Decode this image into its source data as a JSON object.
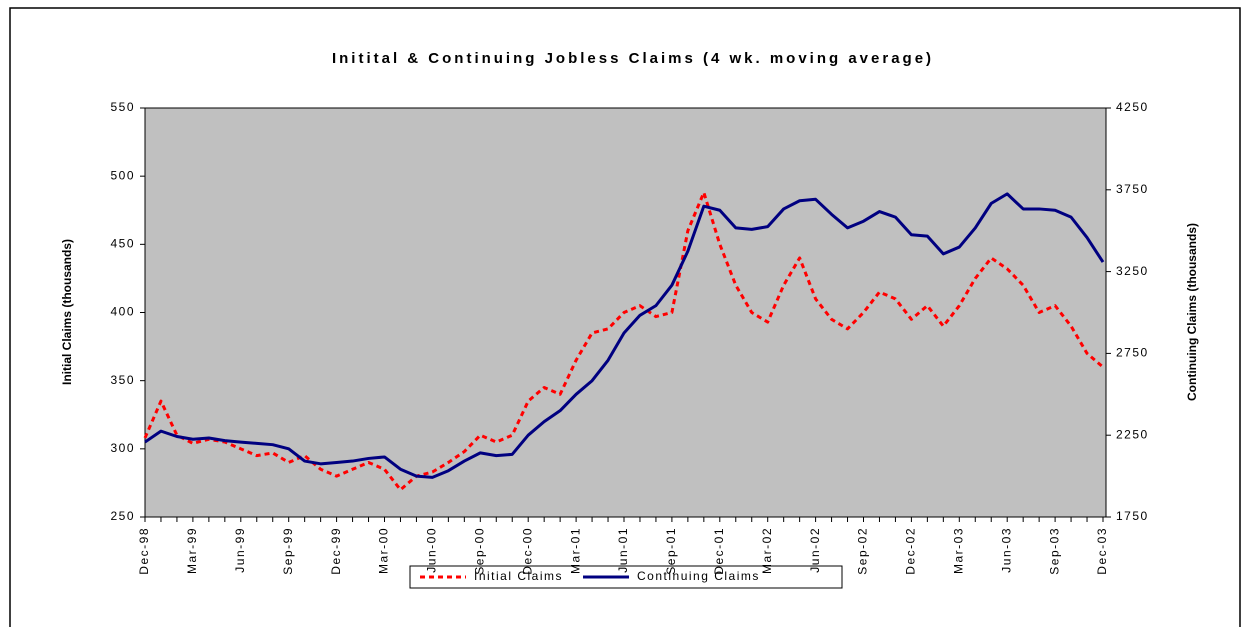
{
  "chart_data": {
    "type": "line",
    "title": "Initital & Continuing Jobless Claims (4 wk. moving average)",
    "ylabel": "Initial Claims (thousands)",
    "y2label": "Continuing Claims (thousands)",
    "categories": [
      "Dec-98",
      null,
      null,
      "Mar-99",
      null,
      null,
      "Jun-99",
      null,
      null,
      "Sep-99",
      null,
      null,
      "Dec-99",
      null,
      null,
      "Mar-00",
      null,
      null,
      "Jun-00",
      null,
      null,
      "Sep-00",
      null,
      null,
      "Dec-00",
      null,
      null,
      "Mar-01",
      null,
      null,
      "Jun-01",
      null,
      null,
      "Sep-01",
      null,
      null,
      "Dec-01",
      null,
      null,
      "Mar-02",
      null,
      null,
      "Jun-02",
      null,
      null,
      "Sep-02",
      null,
      null,
      "Dec-02",
      null,
      null,
      "Mar-03",
      null,
      null,
      "Jun-03",
      null,
      null,
      "Sep-03",
      null,
      null,
      "Dec-03"
    ],
    "ylim": [
      250,
      550
    ],
    "yticks": [
      250,
      300,
      350,
      400,
      450,
      500,
      550
    ],
    "y2lim": [
      1750,
      4250
    ],
    "y2ticks": [
      1750,
      2250,
      2750,
      3250,
      3750,
      4250
    ],
    "legend": "bottom",
    "series": [
      {
        "name": "Initial Claims",
        "color": "#ff0000",
        "dashed": true,
        "values": [
          308,
          335,
          310,
          304,
          307,
          305,
          300,
          295,
          297,
          290,
          295,
          285,
          280,
          285,
          290,
          285,
          270,
          280,
          283,
          290,
          298,
          310,
          305,
          310,
          335,
          345,
          340,
          365,
          385,
          388,
          400,
          405,
          397,
          400,
          460,
          488,
          450,
          420,
          400,
          393,
          420,
          440,
          410,
          395,
          388,
          400,
          415,
          410,
          395,
          405,
          390,
          405,
          425,
          440,
          432,
          420,
          400,
          405,
          390,
          370,
          360
        ]
      },
      {
        "name": "Continuing Claims",
        "color": "#000080",
        "axis": "y2",
        "values": [
          2208,
          2275,
          2242,
          2225,
          2233,
          2217,
          2208,
          2200,
          2192,
          2167,
          2092,
          2075,
          2083,
          2092,
          2108,
          2117,
          2042,
          2000,
          1992,
          2033,
          2092,
          2142,
          2125,
          2133,
          2250,
          2333,
          2400,
          2500,
          2583,
          2708,
          2875,
          2983,
          3042,
          3167,
          3375,
          3650,
          3625,
          3517,
          3508,
          3525,
          3633,
          3683,
          3692,
          3600,
          3517,
          3558,
          3617,
          3583,
          3475,
          3467,
          3358,
          3400,
          3517,
          3667,
          3725,
          3633,
          3633,
          3625,
          3583,
          3458,
          3308
        ]
      }
    ]
  }
}
